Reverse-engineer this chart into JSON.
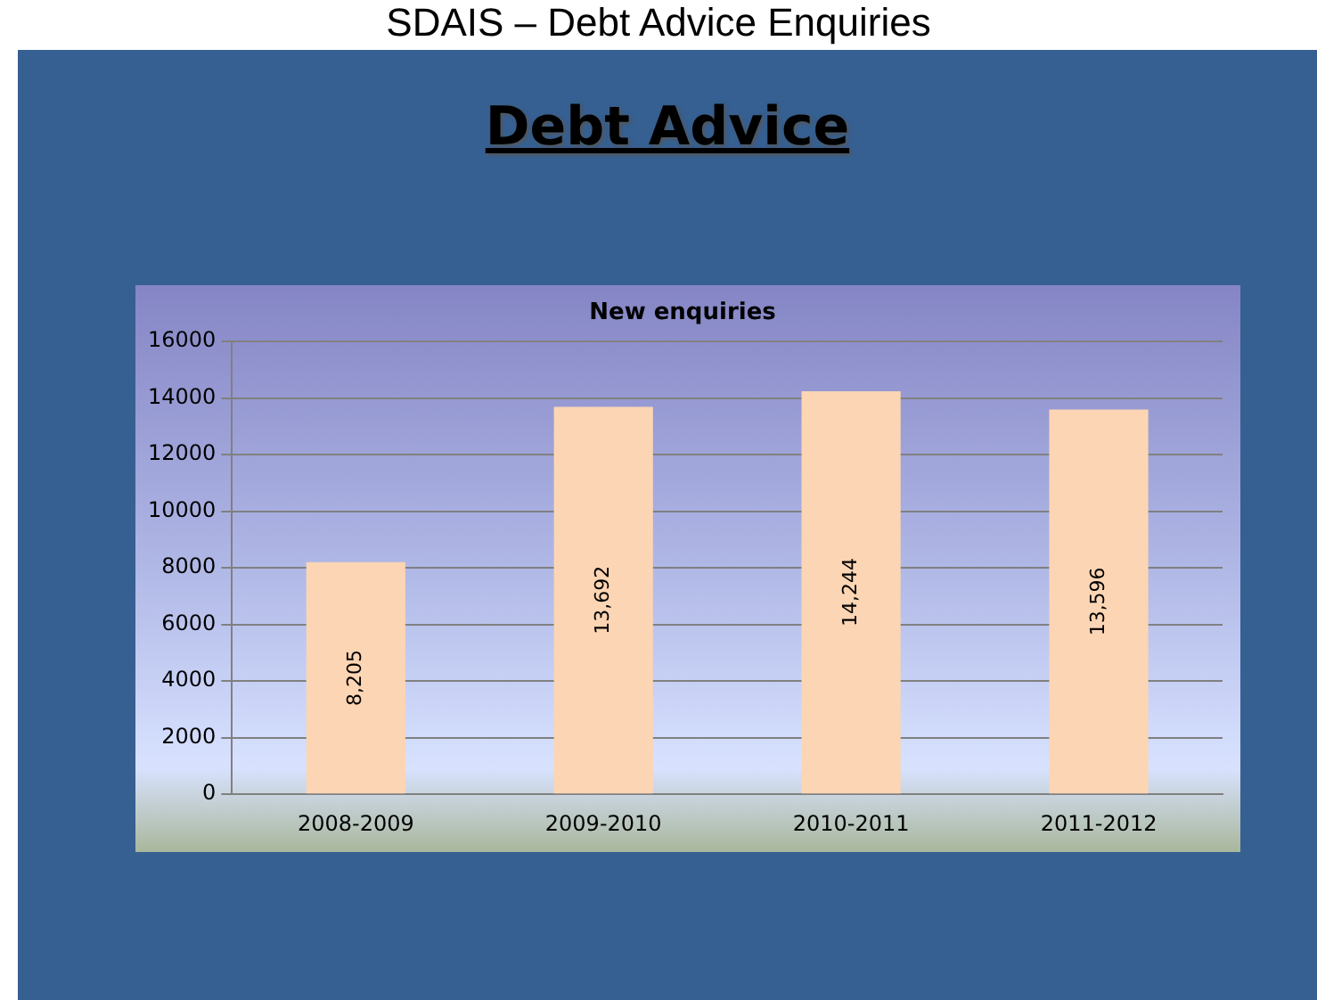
{
  "chart_data": {
    "type": "bar",
    "title": "New enquiries",
    "subtitle": "Debt Advice",
    "annotations": [
      "SDAIS – Debt Advice Enquiries"
    ],
    "categories": [
      "2008-2009",
      "2009-2010",
      "2010-2011",
      "2011-2012"
    ],
    "values": [
      8205,
      13692,
      14244,
      13596
    ],
    "value_labels": [
      "8,205",
      "13,692",
      "14,244",
      "13,596"
    ],
    "color": "#fcd5b4",
    "ylim": [
      0,
      16000
    ],
    "yticks": [
      0,
      2000,
      4000,
      6000,
      8000,
      10000,
      12000,
      14000,
      16000
    ],
    "grid": "y",
    "legend": false
  }
}
